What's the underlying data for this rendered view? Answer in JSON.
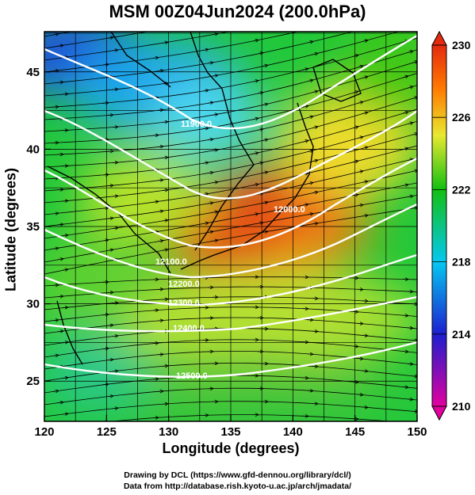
{
  "title": "MSM 00Z04Jun2024 (200.0hPa)",
  "axes": {
    "xlabel": "Longitude (degrees)",
    "ylabel": "Latitude  (degrees)",
    "x_ticks": [
      "120",
      "125",
      "130",
      "135",
      "140",
      "145",
      "150"
    ],
    "y_ticks": [
      "25",
      "30",
      "35",
      "40",
      "45"
    ],
    "xlim": [
      120,
      150
    ],
    "ylim": [
      22.4,
      47.6
    ]
  },
  "colorbar": {
    "ticks": [
      "210",
      "214",
      "218",
      "222",
      "226",
      "230"
    ],
    "range": [
      210,
      230
    ],
    "colors": [
      "#e3009f",
      "#1d1fd0",
      "#05c8f0",
      "#12c012",
      "#e8e830",
      "#ff7a00",
      "#e52a10"
    ]
  },
  "contours": {
    "labels": [
      "11900.0",
      "12000.0",
      "12100.0",
      "12200.0",
      "12300.0",
      "12400.0",
      "12500.0"
    ],
    "color": "#ffffff"
  },
  "credits": [
    "Drawing by DCL (https://www.gfd-dennou.org/library/dcl/)",
    "Data from http://database.rish.kyoto-u.ac.jp/arch/jmadata/"
  ]
}
